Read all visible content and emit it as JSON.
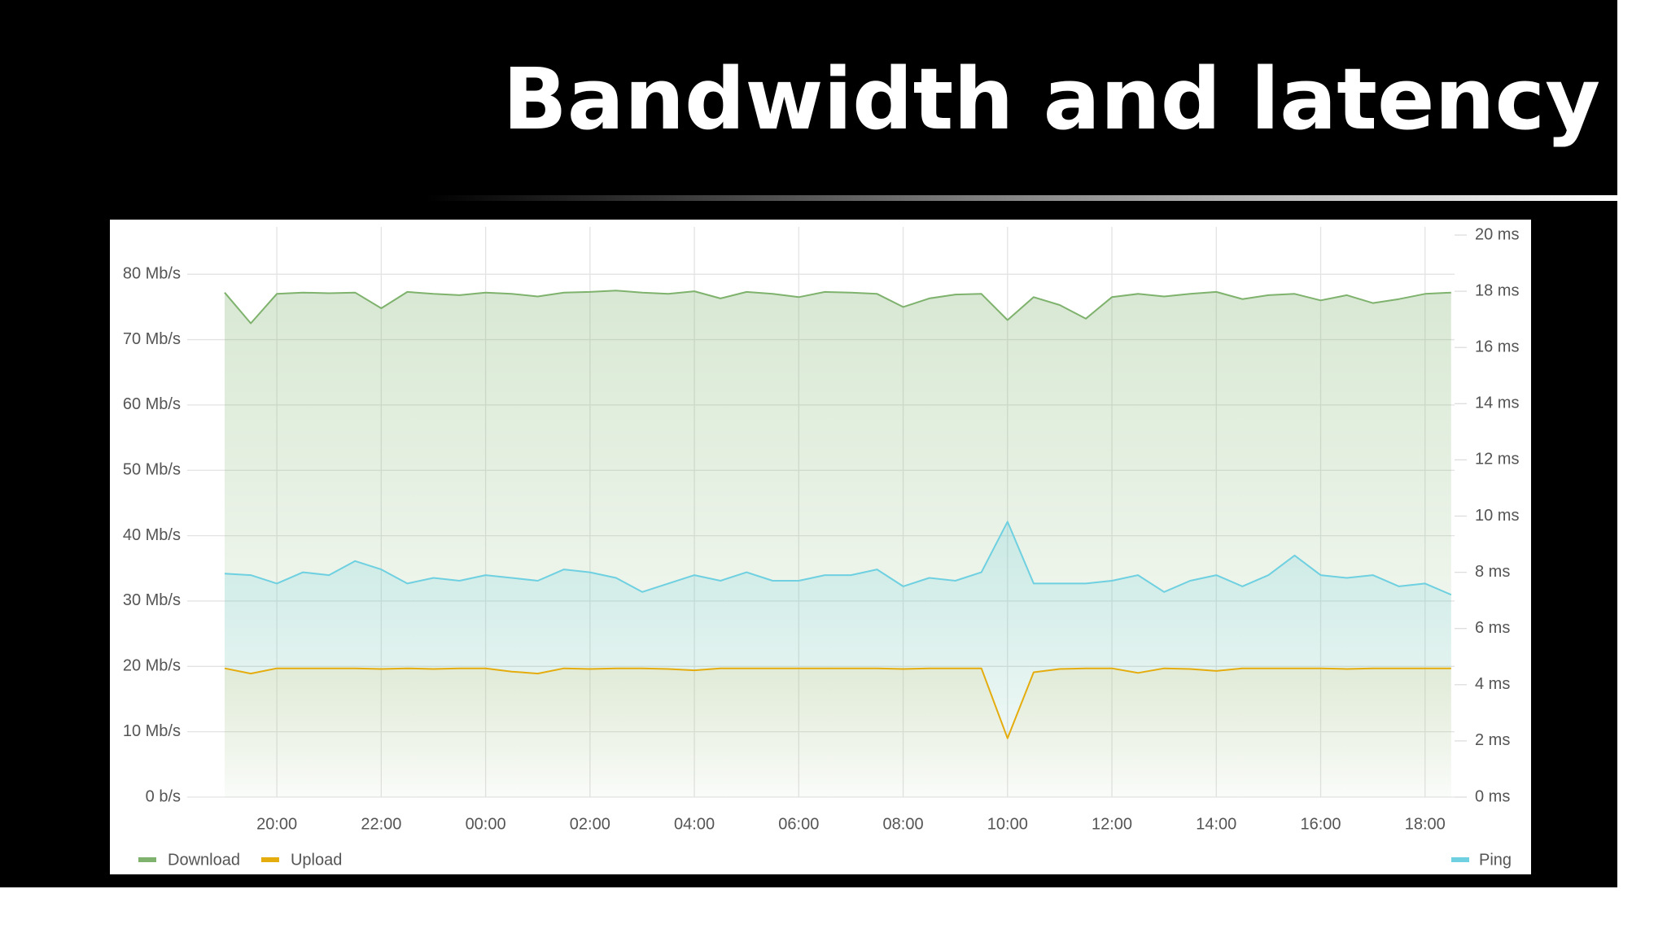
{
  "chart_data": {
    "type": "line",
    "title": "Bandwidth and latency",
    "x": [
      "19:00",
      "19:30",
      "20:00",
      "20:30",
      "21:00",
      "21:30",
      "22:00",
      "22:30",
      "23:00",
      "23:30",
      "00:00",
      "00:30",
      "01:00",
      "01:30",
      "02:00",
      "02:30",
      "03:00",
      "03:30",
      "04:00",
      "04:30",
      "05:00",
      "05:30",
      "06:00",
      "06:30",
      "07:00",
      "07:30",
      "08:00",
      "08:30",
      "09:00",
      "09:30",
      "10:00",
      "10:30",
      "11:00",
      "11:30",
      "12:00",
      "12:30",
      "13:00",
      "13:30",
      "14:00",
      "14:30",
      "15:00",
      "15:30",
      "16:00",
      "16:30",
      "17:00",
      "17:30",
      "18:00",
      "18:30"
    ],
    "xticks": [
      "20:00",
      "22:00",
      "00:00",
      "02:00",
      "04:00",
      "06:00",
      "08:00",
      "10:00",
      "12:00",
      "14:00",
      "16:00",
      "18:00"
    ],
    "ylim": [
      0,
      86
    ],
    "yticks": [
      {
        "value": 0,
        "label": "0 b/s"
      },
      {
        "value": 10,
        "label": "10 Mb/s"
      },
      {
        "value": 20,
        "label": "20 Mb/s"
      },
      {
        "value": 30,
        "label": "30 Mb/s"
      },
      {
        "value": 40,
        "label": "40 Mb/s"
      },
      {
        "value": 50,
        "label": "50 Mb/s"
      },
      {
        "value": 60,
        "label": "60 Mb/s"
      },
      {
        "value": 70,
        "label": "70 Mb/s"
      },
      {
        "value": 80,
        "label": "80 Mb/s"
      }
    ],
    "y2lim": [
      0,
      20
    ],
    "y2ticks": [
      {
        "value": 0,
        "label": "0 ms"
      },
      {
        "value": 2,
        "label": "2 ms"
      },
      {
        "value": 4,
        "label": "4 ms"
      },
      {
        "value": 6,
        "label": "6 ms"
      },
      {
        "value": 8,
        "label": "8 ms"
      },
      {
        "value": 10,
        "label": "10 ms"
      },
      {
        "value": 12,
        "label": "12 ms"
      },
      {
        "value": 14,
        "label": "14 ms"
      },
      {
        "value": 16,
        "label": "16 ms"
      },
      {
        "value": 18,
        "label": "18 ms"
      },
      {
        "value": 20,
        "label": "20 ms"
      }
    ],
    "grid": true,
    "series": [
      {
        "name": "Download",
        "color": "#7eb26d",
        "values": [
          77.2,
          72.5,
          77,
          77.2,
          77.1,
          77.2,
          74.8,
          77.3,
          77,
          76.8,
          77.2,
          77,
          76.6,
          77.2,
          77.3,
          77.5,
          77.2,
          77,
          77.4,
          76.3,
          77.3,
          77,
          76.5,
          77.3,
          77.2,
          77,
          75,
          76.3,
          76.9,
          77,
          73,
          76.5,
          75.3,
          73.2,
          76.5,
          77,
          76.6,
          77,
          77.3,
          76.2,
          76.8,
          77,
          76,
          76.8,
          75.6,
          76.2,
          77,
          77.2
        ]
      },
      {
        "name": "Upload",
        "color": "#e5ac0e",
        "values": [
          19.7,
          18.9,
          19.7,
          19.7,
          19.7,
          19.7,
          19.6,
          19.7,
          19.6,
          19.7,
          19.7,
          19.2,
          18.9,
          19.7,
          19.6,
          19.7,
          19.7,
          19.6,
          19.4,
          19.7,
          19.7,
          19.7,
          19.7,
          19.7,
          19.7,
          19.7,
          19.6,
          19.7,
          19.7,
          19.7,
          9.0,
          19.1,
          19.6,
          19.7,
          19.7,
          19.0,
          19.7,
          19.6,
          19.3,
          19.7,
          19.7,
          19.7,
          19.7,
          19.6,
          19.7,
          19.7,
          19.7,
          19.7
        ]
      },
      {
        "name": "Ping",
        "color": "#6ed0e0",
        "axis": "y2",
        "values": [
          7.95,
          7.9,
          7.6,
          8.0,
          7.9,
          8.4,
          8.1,
          7.6,
          7.8,
          7.7,
          7.9,
          7.8,
          7.7,
          8.1,
          8.0,
          7.8,
          7.3,
          7.6,
          7.9,
          7.7,
          8.0,
          7.7,
          7.7,
          7.9,
          7.9,
          8.1,
          7.5,
          7.8,
          7.7,
          8.0,
          9.8,
          7.6,
          7.6,
          7.6,
          7.7,
          7.9,
          7.3,
          7.7,
          7.9,
          7.5,
          7.9,
          8.6,
          7.9,
          7.8,
          7.9,
          7.5,
          7.6,
          7.2
        ]
      }
    ]
  }
}
